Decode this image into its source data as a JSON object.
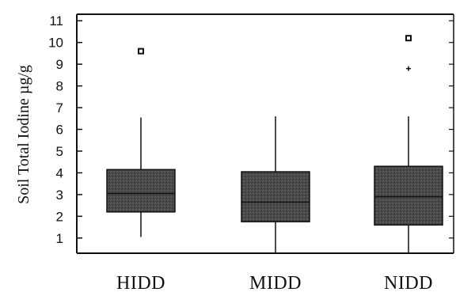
{
  "chart_data": {
    "type": "boxplot",
    "ylabel": "Soil Total Iodine µg/g",
    "xlabel": "",
    "ylim": [
      0.3,
      11.3
    ],
    "yticks": [
      1,
      2,
      3,
      4,
      5,
      6,
      7,
      8,
      9,
      10,
      11
    ],
    "categories": [
      "HIDD",
      "MIDD",
      "NIDD"
    ],
    "boxes": [
      {
        "category": "HIDD",
        "whisker_low": 1.05,
        "q1": 2.2,
        "median": 3.05,
        "q3": 4.15,
        "whisker_high": 6.55,
        "outliers": [
          {
            "value": 9.6,
            "marker": "square"
          }
        ]
      },
      {
        "category": "MIDD",
        "whisker_low": 0.3,
        "q1": 1.75,
        "median": 2.65,
        "q3": 4.05,
        "whisker_high": 6.6,
        "outliers": []
      },
      {
        "category": "NIDD",
        "whisker_low": 0.3,
        "q1": 1.6,
        "median": 2.9,
        "q3": 4.3,
        "whisker_high": 6.6,
        "outliers": [
          {
            "value": 10.2,
            "marker": "square"
          },
          {
            "value": 8.8,
            "marker": "plus"
          }
        ]
      }
    ],
    "colors": {
      "box_fill": "#4a4a4a",
      "axis": "#111111",
      "line": "#111111"
    },
    "grid": false,
    "legend": "none"
  }
}
